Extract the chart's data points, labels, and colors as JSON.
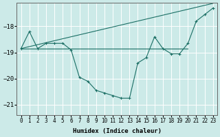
{
  "xlabel": "Humidex (Indice chaleur)",
  "background_color": "#cceae8",
  "grid_color": "#ffffff",
  "line_color": "#1a6e64",
  "x_values": [
    0,
    1,
    2,
    3,
    4,
    5,
    6,
    7,
    8,
    9,
    10,
    11,
    12,
    13,
    14,
    15,
    16,
    17,
    18,
    19,
    20,
    21,
    22,
    23
  ],
  "line_curve": [
    -18.85,
    -18.2,
    -18.85,
    -18.65,
    -18.65,
    -18.65,
    -18.9,
    -19.95,
    -20.1,
    -20.45,
    -20.55,
    -20.65,
    -20.75,
    -20.75,
    -19.4,
    -19.2,
    -18.4,
    -18.85,
    -19.05,
    -19.05,
    -18.65,
    -17.8,
    -17.55,
    -17.3
  ],
  "line_flat_x": [
    0,
    1,
    2,
    3,
    4,
    5,
    6,
    7,
    8,
    9,
    10,
    11,
    12,
    13,
    14,
    15,
    16,
    17,
    18,
    19,
    20
  ],
  "line_flat_y": [
    -18.85,
    -18.85,
    -18.85,
    -18.85,
    -18.85,
    -18.85,
    -18.85,
    -18.85,
    -18.85,
    -18.85,
    -18.85,
    -18.85,
    -18.85,
    -18.85,
    -18.85,
    -18.85,
    -18.85,
    -18.85,
    -18.85,
    -18.85,
    -18.85
  ],
  "ylim": [
    -21.4,
    -17.1
  ],
  "xlim": [
    -0.5,
    23.5
  ],
  "yticks": [
    -21,
    -20,
    -19,
    -18
  ],
  "xticks": [
    0,
    1,
    2,
    3,
    4,
    5,
    6,
    7,
    8,
    9,
    10,
    11,
    12,
    13,
    14,
    15,
    16,
    17,
    18,
    19,
    20,
    21,
    22,
    23
  ]
}
